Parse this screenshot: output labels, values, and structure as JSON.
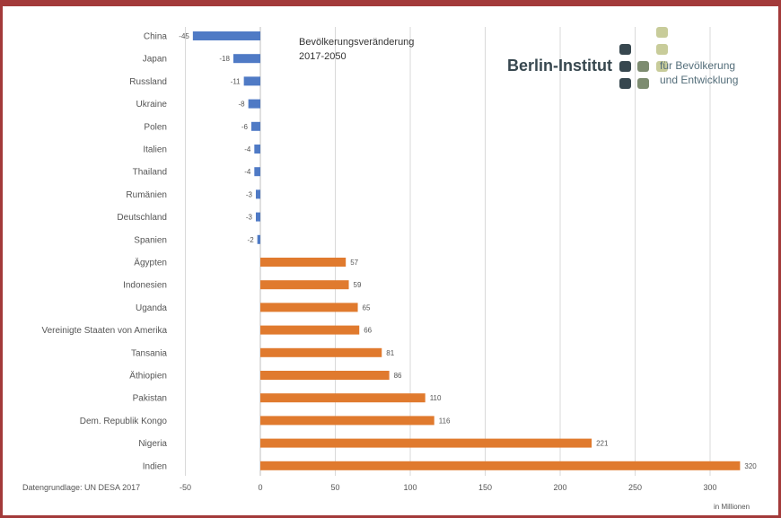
{
  "chart_data": {
    "type": "bar",
    "orientation": "horizontal",
    "title_lines": [
      "Bevölkerungsveränderung",
      "2017-2050"
    ],
    "categories": [
      "China",
      "Japan",
      "Russland",
      "Ukraine",
      "Polen",
      "Italien",
      "Thailand",
      "Rumänien",
      "Deutschland",
      "Spanien",
      "Ägypten",
      "Indonesien",
      "Uganda",
      "Vereinigte Staaten von Amerika",
      "Tansania",
      "Äthiopien",
      "Pakistan",
      "Dem. Republik Kongo",
      "Nigeria",
      "Indien"
    ],
    "values": [
      -45,
      -18,
      -11,
      -8,
      -6,
      -4,
      -4,
      -3,
      -3,
      -2,
      57,
      59,
      65,
      66,
      81,
      86,
      110,
      116,
      221,
      320
    ],
    "value_labels": [
      "-45",
      "-18",
      "-11",
      "-8",
      "-6",
      "-4",
      "-4",
      "-3",
      "-3",
      "-2",
      "57",
      "59",
      "65",
      "66",
      "81",
      "86",
      "110",
      "116",
      "221",
      "320"
    ],
    "xlim": [
      -50,
      330
    ],
    "xticks": [
      "-50",
      "0",
      "50",
      "100",
      "150",
      "200",
      "250",
      "300"
    ],
    "xtick_values": [
      -50,
      0,
      50,
      100,
      150,
      200,
      250,
      300
    ],
    "unit_label": "in Millionen",
    "grid": true,
    "colors": {
      "negative": "#4f7ac5",
      "positive": "#e07a2e",
      "grid": "#d9d9d9",
      "frame": "#a33a3a"
    }
  },
  "source": "Datengrundlage: UN DESA 2017",
  "logo": {
    "name": "Berlin-Institut",
    "tagline_lines": [
      "für Bevölkerung",
      "und Entwicklung"
    ],
    "colors": {
      "dark": "#37474f",
      "mid": "#7d8c70",
      "light": "#c8cc9a"
    }
  }
}
